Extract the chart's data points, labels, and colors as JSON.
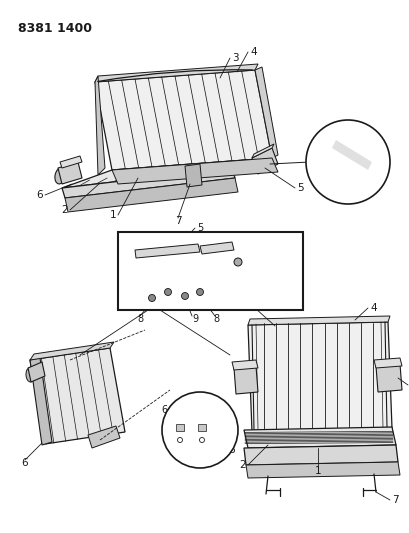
{
  "title": "8381 1400",
  "bg": "#ffffff",
  "fg": "#1a1a1a",
  "figsize": [
    4.1,
    5.33
  ],
  "dpi": 100,
  "lw_main": 0.9,
  "lw_detail": 0.5
}
